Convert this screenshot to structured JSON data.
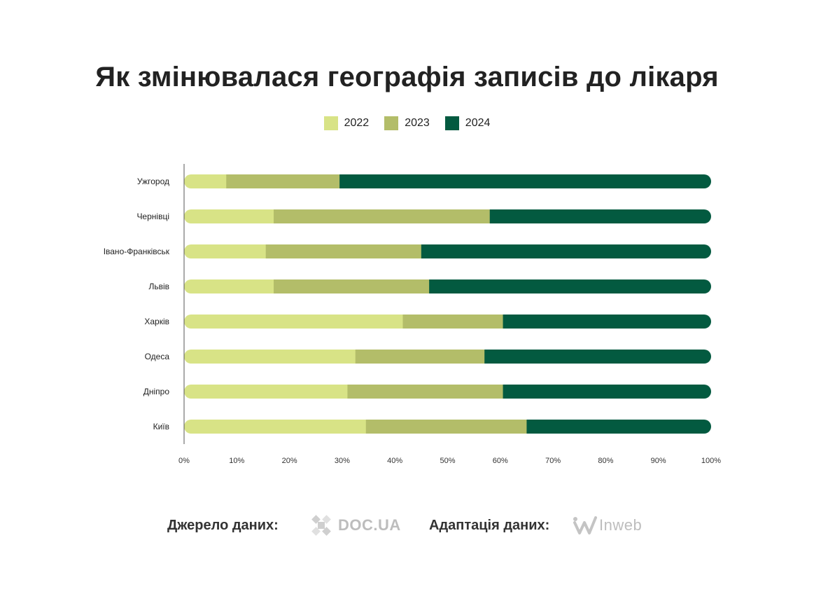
{
  "chart_data": {
    "type": "bar",
    "orientation": "horizontal",
    "stacked": true,
    "normalized": true,
    "title": "Як змінювалася географія записів до лікаря",
    "categories": [
      "Ужгород",
      "Чернівці",
      "Івано-Франківськ",
      "Львів",
      "Харків",
      "Одеса",
      "Дніпро",
      "Київ"
    ],
    "series": [
      {
        "name": "2022",
        "color": "#d8e386",
        "values": [
          8,
          17,
          15.5,
          17,
          41.5,
          32.5,
          31,
          34.5
        ]
      },
      {
        "name": "2023",
        "color": "#b3bd69",
        "values": [
          21.5,
          41,
          29.5,
          29.5,
          19,
          24.5,
          29.5,
          30.5
        ]
      },
      {
        "name": "2024",
        "color": "#035a40",
        "values": [
          70.5,
          42,
          55,
          53.5,
          39.5,
          43,
          39.5,
          35
        ]
      }
    ],
    "x_ticks": [
      "0%",
      "10%",
      "20%",
      "30%",
      "40%",
      "50%",
      "60%",
      "70%",
      "80%",
      "90%",
      "100%"
    ],
    "xlim": [
      0,
      100
    ],
    "legend_position": "top-center",
    "grid": false
  },
  "footer": {
    "source_label": "Джерело даних:",
    "source_logo_text": "DOC.UA",
    "adaptation_label": "Адаптація даних:",
    "adaptation_logo_text": "Inweb"
  },
  "icons": {
    "source_logo": "docua-cross-icon",
    "adaptation_logo": "inweb-w-icon"
  }
}
